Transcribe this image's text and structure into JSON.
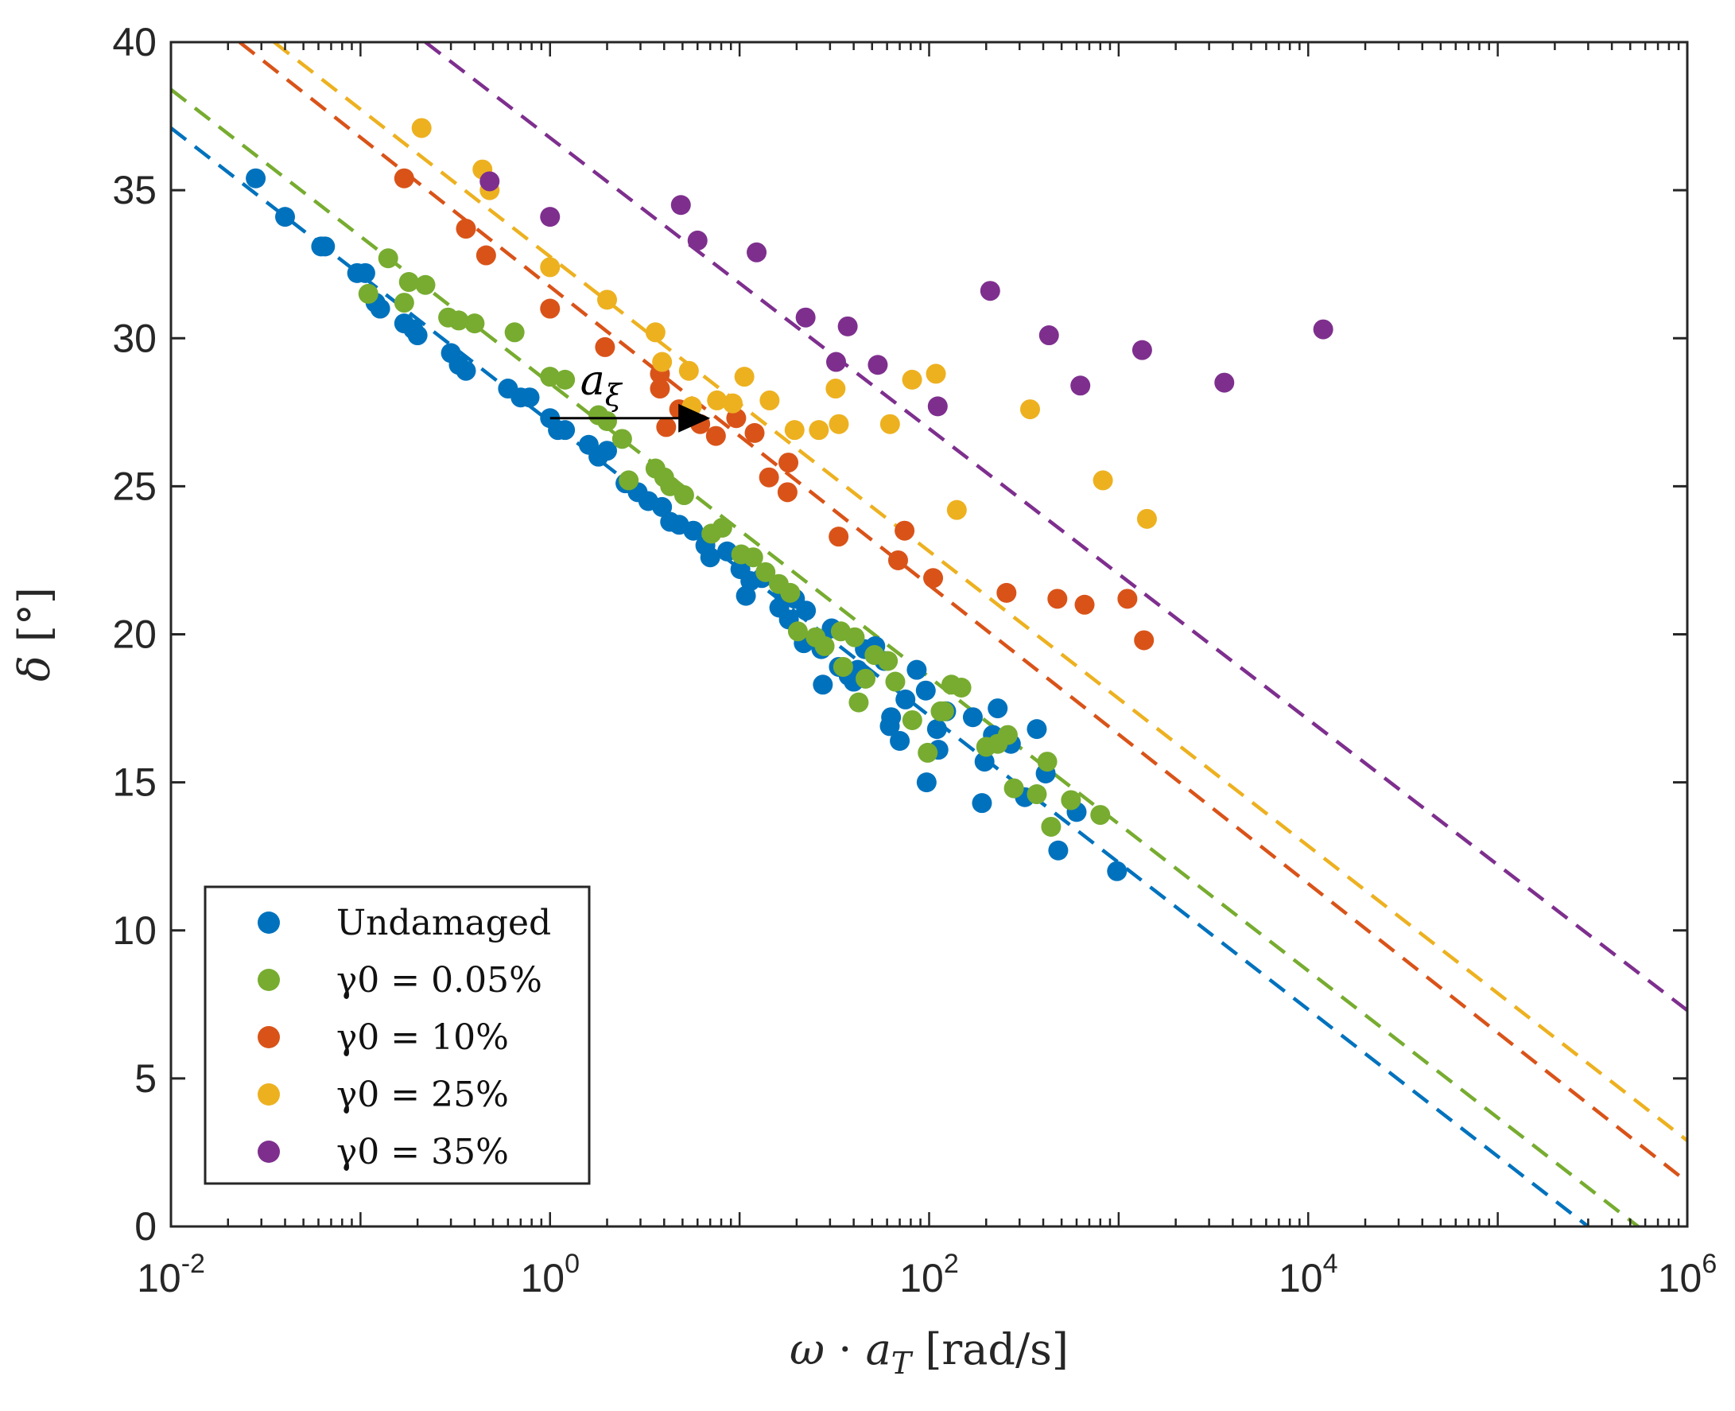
{
  "chart_data": {
    "type": "scatter",
    "title": "",
    "xlabel": "ω · a_T [rad/s]",
    "ylabel": "δ [°]",
    "xscale": "log",
    "xlim": [
      0.01,
      1000000
    ],
    "ylim": [
      0,
      40
    ],
    "x_ticks": [
      {
        "base": "10",
        "exp": "-2",
        "value": 0.01
      },
      {
        "base": "10",
        "exp": "0",
        "value": 1
      },
      {
        "base": "10",
        "exp": "2",
        "value": 100
      },
      {
        "base": "10",
        "exp": "4",
        "value": 10000
      },
      {
        "base": "10",
        "exp": "6",
        "value": 1000000
      }
    ],
    "y_ticks": [
      "0",
      "5",
      "10",
      "15",
      "20",
      "25",
      "30",
      "35",
      "40"
    ],
    "grid": false,
    "legend_position": "bottom-left",
    "annotation": {
      "label": "a_ξ",
      "from": [
        1,
        27.3
      ],
      "to": [
        7,
        27.3
      ]
    },
    "series": [
      {
        "name": "Undamaged",
        "color": "#0072BD",
        "fit": {
          "x": [
            0.01,
            300000
          ],
          "y": [
            37.1,
            0
          ]
        },
        "points": [
          [
            0.028,
            35.4
          ],
          [
            0.04,
            34.1
          ],
          [
            0.062,
            33.1
          ],
          [
            0.065,
            33.1
          ],
          [
            0.096,
            32.2
          ],
          [
            0.106,
            32.2
          ],
          [
            0.12,
            31.2
          ],
          [
            0.127,
            31
          ],
          [
            0.17,
            30.5
          ],
          [
            0.2,
            30.1
          ],
          [
            0.19,
            30.3
          ],
          [
            0.3,
            29.5
          ],
          [
            0.33,
            29.1
          ],
          [
            0.36,
            28.9
          ],
          [
            0.6,
            28.3
          ],
          [
            0.7,
            28
          ],
          [
            0.78,
            28
          ],
          [
            1.0,
            27.3
          ],
          [
            1.1,
            26.9
          ],
          [
            1.2,
            26.9
          ],
          [
            1.6,
            26.4
          ],
          [
            1.8,
            26
          ],
          [
            2.0,
            26.2
          ],
          [
            2.5,
            25.1
          ],
          [
            2.9,
            24.8
          ],
          [
            3.3,
            24.5
          ],
          [
            3.9,
            24.3
          ],
          [
            4.3,
            23.8
          ],
          [
            4.8,
            23.7
          ],
          [
            5.7,
            23.5
          ],
          [
            6.6,
            23
          ],
          [
            7.0,
            22.6
          ],
          [
            8.6,
            22.8
          ],
          [
            10.1,
            22.2
          ],
          [
            10.8,
            21.3
          ],
          [
            11.4,
            21.8
          ],
          [
            13.1,
            21.9
          ],
          [
            16.9,
            21.4
          ],
          [
            16.2,
            20.9
          ],
          [
            18.2,
            20.5
          ],
          [
            19.6,
            21.2
          ],
          [
            22.4,
            20.8
          ],
          [
            21.8,
            19.7
          ],
          [
            27,
            19.5
          ],
          [
            30.6,
            20.2
          ],
          [
            33.4,
            18.9
          ],
          [
            37.6,
            18.6
          ],
          [
            42,
            18.8
          ],
          [
            45.8,
            19.5
          ],
          [
            52,
            19.6
          ],
          [
            58,
            19.1
          ],
          [
            63,
            17.2
          ],
          [
            75,
            17.8
          ],
          [
            86,
            18.8
          ],
          [
            96,
            18.1
          ],
          [
            97,
            15
          ],
          [
            110,
            16.8
          ],
          [
            112,
            16.1
          ],
          [
            123,
            17.4
          ],
          [
            170,
            17.2
          ],
          [
            196,
            15.7
          ],
          [
            217,
            16.6
          ],
          [
            230,
            17.5
          ],
          [
            270,
            16.3
          ],
          [
            320,
            14.5
          ],
          [
            370,
            16.8
          ],
          [
            412,
            15.3
          ],
          [
            480,
            12.7
          ],
          [
            600,
            14
          ],
          [
            980,
            12
          ],
          [
            62,
            16.9
          ],
          [
            70,
            16.4
          ],
          [
            190,
            14.3
          ],
          [
            27.5,
            18.3
          ],
          [
            40,
            18.4
          ]
        ]
      },
      {
        "name": "γ0 = 0.05%",
        "color": "#77AC30",
        "fit": {
          "x": [
            0.01,
            550000
          ],
          "y": [
            38.4,
            0
          ]
        },
        "points": [
          [
            0.11,
            31.5
          ],
          [
            0.14,
            32.7
          ],
          [
            0.17,
            31.2
          ],
          [
            0.18,
            31.9
          ],
          [
            0.22,
            31.8
          ],
          [
            0.29,
            30.7
          ],
          [
            0.33,
            30.6
          ],
          [
            0.4,
            30.5
          ],
          [
            0.65,
            30.2
          ],
          [
            1.0,
            28.7
          ],
          [
            1.2,
            28.6
          ],
          [
            1.8,
            27.4
          ],
          [
            2.0,
            27.2
          ],
          [
            2.4,
            26.6
          ],
          [
            2.6,
            25.2
          ],
          [
            3.6,
            25.6
          ],
          [
            4.0,
            25.3
          ],
          [
            4.3,
            25.0
          ],
          [
            5.1,
            24.7
          ],
          [
            7.1,
            23.4
          ],
          [
            8.1,
            23.6
          ],
          [
            10.2,
            22.7
          ],
          [
            11.8,
            22.6
          ],
          [
            13.7,
            22.1
          ],
          [
            16.1,
            21.7
          ],
          [
            18.5,
            21.4
          ],
          [
            20.3,
            20.1
          ],
          [
            25.2,
            19.9
          ],
          [
            28.1,
            19.6
          ],
          [
            34.2,
            20.1
          ],
          [
            35.2,
            18.9
          ],
          [
            40.5,
            19.9
          ],
          [
            42.5,
            17.7
          ],
          [
            46.2,
            18.5
          ],
          [
            51.5,
            19.3
          ],
          [
            60.6,
            19.1
          ],
          [
            66.3,
            18.4
          ],
          [
            81.5,
            17.1
          ],
          [
            98.3,
            16.0
          ],
          [
            115,
            17.4
          ],
          [
            120,
            17.4
          ],
          [
            131,
            18.3
          ],
          [
            148,
            18.2
          ],
          [
            200,
            16.2
          ],
          [
            230,
            16.3
          ],
          [
            260,
            16.6
          ],
          [
            280,
            14.8
          ],
          [
            370,
            14.6
          ],
          [
            420,
            15.7
          ],
          [
            440,
            13.5
          ],
          [
            560,
            14.4
          ],
          [
            800,
            13.9
          ]
        ]
      },
      {
        "name": "γ0 = 10%",
        "color": "#D95319",
        "fit": {
          "x": [
            0.023,
            1000000
          ],
          "y": [
            40,
            1.5
          ]
        },
        "points": [
          [
            0.17,
            35.4
          ],
          [
            0.36,
            33.7
          ],
          [
            0.46,
            32.8
          ],
          [
            1.0,
            31
          ],
          [
            1.95,
            29.7
          ],
          [
            3.8,
            28.8
          ],
          [
            3.8,
            28.3
          ],
          [
            4.1,
            27
          ],
          [
            4.8,
            27.6
          ],
          [
            6.2,
            27.1
          ],
          [
            7.5,
            26.7
          ],
          [
            9.6,
            27.3
          ],
          [
            12,
            26.8
          ],
          [
            14.3,
            25.3
          ],
          [
            18.1,
            25.8
          ],
          [
            17.9,
            24.8
          ],
          [
            33.3,
            23.3
          ],
          [
            68.6,
            22.5
          ],
          [
            74.2,
            23.5
          ],
          [
            105,
            21.9
          ],
          [
            256,
            21.4
          ],
          [
            475,
            21.2
          ],
          [
            661,
            21
          ],
          [
            1112,
            21.2
          ],
          [
            1360,
            19.8
          ]
        ]
      },
      {
        "name": "γ0 = 25%",
        "color": "#EDB120",
        "fit": {
          "x": [
            0.035,
            1000000
          ],
          "y": [
            40,
            2.9
          ]
        },
        "points": [
          [
            0.21,
            37.1
          ],
          [
            0.44,
            35.7
          ],
          [
            0.48,
            35
          ],
          [
            1.0,
            32.4
          ],
          [
            2.0,
            31.3
          ],
          [
            3.6,
            30.2
          ],
          [
            3.9,
            29.2
          ],
          [
            5.4,
            28.9
          ],
          [
            5.6,
            27.7
          ],
          [
            7.6,
            27.9
          ],
          [
            9.2,
            27.8
          ],
          [
            10.6,
            28.7
          ],
          [
            14.4,
            27.9
          ],
          [
            19.5,
            26.9
          ],
          [
            26.2,
            26.9
          ],
          [
            32.1,
            28.3
          ],
          [
            33.4,
            27.1
          ],
          [
            62.2,
            27.1
          ],
          [
            81.3,
            28.6
          ],
          [
            108.6,
            28.8
          ],
          [
            140,
            24.2
          ],
          [
            341,
            27.6
          ],
          [
            826,
            25.2
          ],
          [
            1410,
            23.9
          ]
        ]
      },
      {
        "name": "γ0 = 35%",
        "color": "#7E2F8E",
        "fit": {
          "x": [
            0.22,
            1000000
          ],
          "y": [
            40,
            7.3
          ]
        },
        "points": [
          [
            0.48,
            35.3
          ],
          [
            1.0,
            34.1
          ],
          [
            4.9,
            34.5
          ],
          [
            6.0,
            33.3
          ],
          [
            12.3,
            32.9
          ],
          [
            22.3,
            30.7
          ],
          [
            32.3,
            29.2
          ],
          [
            37.2,
            30.4
          ],
          [
            53.6,
            29.1
          ],
          [
            111,
            27.7
          ],
          [
            210,
            31.6
          ],
          [
            429,
            30.1
          ],
          [
            628,
            28.4
          ],
          [
            1330,
            29.6
          ],
          [
            3610,
            28.5
          ],
          [
            12000,
            30.3
          ]
        ]
      }
    ]
  }
}
